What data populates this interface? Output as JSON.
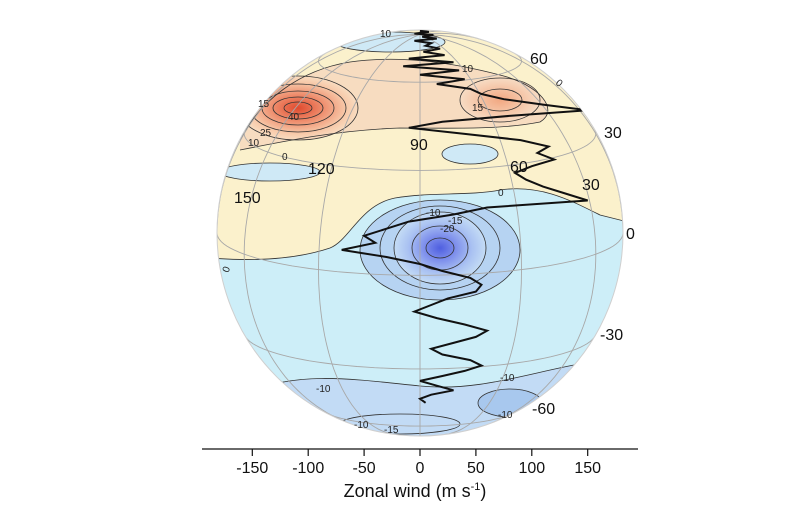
{
  "chart_data": {
    "type": "line",
    "title": "",
    "xlabel": "Zonal wind (m s",
    "xlabel_sup": "-1",
    "xlabel_close": ")",
    "x_ticks": [
      "-150",
      "-100",
      "-50",
      "0",
      "50",
      "100",
      "150"
    ],
    "x_tick_values": [
      -150,
      -100,
      -50,
      0,
      50,
      100,
      150
    ],
    "xlim": [
      -195,
      195
    ],
    "latitude_labels": [
      "60",
      "30",
      "0",
      "-30",
      "-60"
    ],
    "longitude_labels": [
      "90",
      "60",
      "30",
      "120",
      "150"
    ],
    "contour_labels": [
      "10",
      "10",
      "15",
      "15",
      "25",
      "40",
      "10",
      "0",
      "0",
      "-10",
      "-15",
      "-20",
      "0",
      "-10",
      "-10",
      "-10",
      "-15",
      "-10",
      "0"
    ],
    "series": [
      {
        "lat": [
          78,
          75,
          72,
          70,
          68,
          66,
          64,
          62,
          60,
          58,
          56,
          54,
          52,
          50,
          48,
          46,
          44,
          42,
          40,
          38,
          36,
          34,
          32,
          30,
          28,
          26,
          24,
          22,
          20,
          18,
          16,
          14,
          12,
          10,
          8,
          6,
          4,
          2,
          0,
          -2,
          -4,
          -6,
          -8,
          -10,
          -12,
          -14,
          -16,
          -18,
          -20,
          -22,
          -24,
          -26,
          -28,
          -30,
          -32,
          -34,
          -36,
          -38,
          -40,
          -42,
          -44,
          -46,
          -48,
          -50,
          -52,
          -54,
          -56,
          -58,
          -60,
          -62,
          -64
        ],
        "values": [
          0,
          8,
          -5,
          12,
          2,
          15,
          -5,
          10,
          5,
          18,
          3,
          22,
          -10,
          30,
          -15,
          35,
          0,
          40,
          15,
          45,
          55,
          75,
          110,
          150,
          80,
          20,
          -10,
          40,
          90,
          115,
          105,
          120,
          100,
          85,
          95,
          110,
          130,
          150,
          60,
          30,
          -10,
          -30,
          -50,
          -40,
          -70,
          -30,
          0,
          20,
          45,
          55,
          50,
          25,
          10,
          -5,
          15,
          40,
          60,
          50,
          30,
          10,
          20,
          45,
          55,
          40,
          20,
          0,
          15,
          30,
          10,
          0,
          5
        ]
      }
    ],
    "colors": {
      "positive_fill": "#fbf1cc",
      "negative_fill": "#cceef8",
      "strong_positive": "#e0553a",
      "strong_negative": "#5a6ee0",
      "profile_line": "#111111",
      "grid": "#b0b0b0"
    }
  }
}
